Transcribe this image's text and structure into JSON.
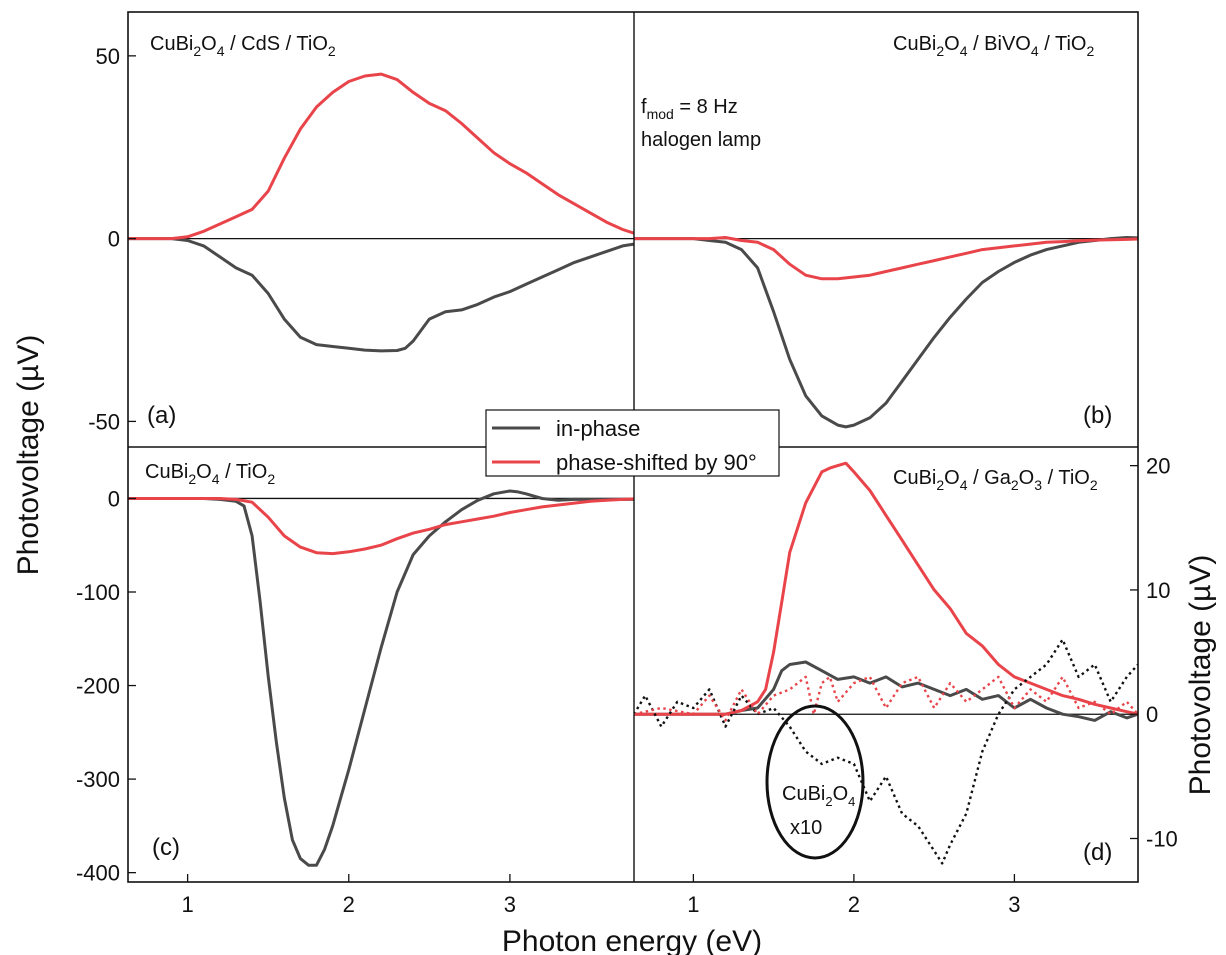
{
  "figure": {
    "ylabel": "Photovoltage (µV)",
    "ylabel_right": "Photovoltage (µV)",
    "xlabel": "Photon energy (eV)",
    "legend": [
      "in-phase",
      "phase-shifted by 90°"
    ],
    "colors": {
      "in_phase": "#4a4a4a",
      "phase_shifted": "#e8444a",
      "frame": "#111111"
    }
  },
  "chart_data": [
    {
      "type": "line",
      "panel": "(a)",
      "title": "CuBi2O4 / CdS / TiO2",
      "xlim": [
        0.63,
        3.77
      ],
      "ylim": [
        -57,
        62
      ],
      "yticks": [
        50,
        0,
        -50
      ],
      "grid": false,
      "series": [
        {
          "name": "in-phase",
          "x": [
            0.63,
            0.9,
            1.0,
            1.1,
            1.2,
            1.3,
            1.4,
            1.5,
            1.6,
            1.7,
            1.8,
            1.9,
            2.0,
            2.1,
            2.2,
            2.3,
            2.35,
            2.4,
            2.5,
            2.6,
            2.7,
            2.8,
            2.9,
            3.0,
            3.1,
            3.2,
            3.3,
            3.4,
            3.5,
            3.6,
            3.7,
            3.77
          ],
          "y": [
            0,
            0,
            -0.5,
            -2,
            -5,
            -8,
            -10,
            -15,
            -22,
            -27,
            -29,
            -29.5,
            -30,
            -30.5,
            -30.7,
            -30.6,
            -30,
            -28,
            -22,
            -20,
            -19.5,
            -18,
            -16,
            -14.5,
            -12.5,
            -10.5,
            -8.5,
            -6.5,
            -5,
            -3.5,
            -2,
            -1.5
          ]
        },
        {
          "name": "phase-shifted by 90°",
          "x": [
            0.63,
            0.9,
            1.0,
            1.1,
            1.2,
            1.3,
            1.4,
            1.5,
            1.6,
            1.7,
            1.8,
            1.9,
            2.0,
            2.1,
            2.2,
            2.3,
            2.4,
            2.5,
            2.6,
            2.7,
            2.8,
            2.9,
            3.0,
            3.1,
            3.2,
            3.3,
            3.4,
            3.5,
            3.6,
            3.7,
            3.77
          ],
          "y": [
            0,
            0,
            0.5,
            2,
            4,
            6,
            8,
            13,
            22,
            30,
            36,
            40,
            43,
            44.5,
            45,
            43.5,
            40,
            37,
            35,
            31.5,
            27.5,
            23.5,
            20.5,
            18,
            15,
            12,
            9.5,
            7,
            4.5,
            2.5,
            1.5
          ]
        }
      ]
    },
    {
      "type": "line",
      "panel": "(b)",
      "title": "CuBi2O4 / BiVO4 / TiO2",
      "annotation_lines": [
        "fmod = 8 Hz",
        "halogen lamp"
      ],
      "xlim": [
        0.63,
        3.77
      ],
      "ylim": [
        -57,
        62
      ],
      "grid": false,
      "series": [
        {
          "name": "in-phase",
          "x": [
            0.63,
            1.0,
            1.1,
            1.2,
            1.3,
            1.4,
            1.5,
            1.6,
            1.7,
            1.8,
            1.9,
            1.95,
            2.0,
            2.1,
            2.2,
            2.3,
            2.4,
            2.5,
            2.6,
            2.7,
            2.8,
            2.9,
            3.0,
            3.1,
            3.2,
            3.3,
            3.4,
            3.5,
            3.6,
            3.7,
            3.77
          ],
          "y": [
            0,
            0,
            -0.5,
            -1,
            -3,
            -8,
            -20,
            -33,
            -43,
            -48.5,
            -51,
            -51.5,
            -51,
            -49,
            -45,
            -39,
            -33,
            -27,
            -21.5,
            -16.5,
            -12,
            -9,
            -6.5,
            -4.5,
            -3,
            -2,
            -1,
            -0.5,
            0,
            0.3,
            0.2
          ]
        },
        {
          "name": "phase-shifted by 90°",
          "x": [
            0.63,
            1.0,
            1.1,
            1.2,
            1.3,
            1.4,
            1.5,
            1.6,
            1.7,
            1.8,
            1.9,
            2.0,
            2.1,
            2.2,
            2.3,
            2.4,
            2.5,
            2.6,
            2.7,
            2.8,
            2.9,
            3.0,
            3.1,
            3.2,
            3.3,
            3.4,
            3.5,
            3.6,
            3.7,
            3.77
          ],
          "y": [
            0,
            0,
            0,
            0.3,
            -0.5,
            -1,
            -3,
            -7,
            -10,
            -11,
            -11,
            -10.5,
            -10,
            -9,
            -8,
            -7,
            -6,
            -5,
            -4,
            -3,
            -2.5,
            -2,
            -1.5,
            -1,
            -0.8,
            -0.6,
            -0.4,
            -0.3,
            -0.2,
            -0.1
          ]
        }
      ]
    },
    {
      "type": "line",
      "panel": "(c)",
      "title": "CuBi2O4 / TiO2",
      "xlim": [
        0.63,
        3.77
      ],
      "ylim": [
        -410,
        55
      ],
      "yticks": [
        0,
        -100,
        -200,
        -300,
        -400
      ],
      "xticks": [
        1,
        2,
        3
      ],
      "grid": false,
      "series": [
        {
          "name": "in-phase",
          "x": [
            0.63,
            1.0,
            1.1,
            1.2,
            1.3,
            1.35,
            1.4,
            1.45,
            1.5,
            1.55,
            1.6,
            1.65,
            1.7,
            1.75,
            1.8,
            1.85,
            1.9,
            1.95,
            2.0,
            2.1,
            2.2,
            2.3,
            2.4,
            2.5,
            2.6,
            2.7,
            2.8,
            2.9,
            3.0,
            3.05,
            3.1,
            3.2,
            3.3,
            3.4,
            3.5,
            3.6,
            3.7,
            3.77
          ],
          "y": [
            0,
            0,
            0,
            -1,
            -3,
            -8,
            -40,
            -110,
            -190,
            -260,
            -320,
            -365,
            -385,
            -392,
            -392,
            -375,
            -350,
            -320,
            -290,
            -225,
            -160,
            -100,
            -60,
            -40,
            -25,
            -12,
            -2,
            5,
            8,
            7,
            5,
            0,
            -2,
            -1,
            -1,
            -1,
            -1,
            -1
          ]
        },
        {
          "name": "phase-shifted by 90°",
          "x": [
            0.63,
            1.0,
            1.1,
            1.2,
            1.3,
            1.4,
            1.5,
            1.6,
            1.7,
            1.8,
            1.9,
            2.0,
            2.1,
            2.2,
            2.3,
            2.4,
            2.5,
            2.6,
            2.7,
            2.8,
            2.9,
            3.0,
            3.1,
            3.2,
            3.3,
            3.4,
            3.5,
            3.6,
            3.7,
            3.77
          ],
          "y": [
            0,
            0,
            0,
            0,
            -1,
            -4,
            -20,
            -40,
            -52,
            -58,
            -59,
            -57,
            -54,
            -50,
            -43,
            -37,
            -33,
            -28,
            -25,
            -22,
            -19,
            -15,
            -12,
            -9,
            -7,
            -5,
            -3,
            -2,
            -1,
            -0.5
          ]
        }
      ]
    },
    {
      "type": "line",
      "panel": "(d)",
      "title": "CuBi2O4 / Ga2O3 / TiO2",
      "inset_label_lines": [
        "CuBi2O4",
        "x10"
      ],
      "xlim": [
        0.63,
        3.77
      ],
      "ylim": [
        -13.5,
        21.5
      ],
      "yticks": [
        20,
        10,
        0,
        -10
      ],
      "xticks": [
        1,
        2,
        3
      ],
      "grid": false,
      "series": [
        {
          "name": "in-phase",
          "x": [
            0.63,
            1.0,
            1.1,
            1.2,
            1.3,
            1.4,
            1.5,
            1.55,
            1.6,
            1.7,
            1.8,
            1.9,
            2.0,
            2.1,
            2.2,
            2.3,
            2.4,
            2.5,
            2.6,
            2.7,
            2.8,
            2.9,
            3.0,
            3.1,
            3.2,
            3.3,
            3.4,
            3.5,
            3.6,
            3.7,
            3.77
          ],
          "y": [
            0,
            0,
            0,
            0,
            0.3,
            0.5,
            2,
            3.5,
            4,
            4.2,
            3.5,
            2.8,
            3,
            2.5,
            3,
            2.2,
            2.5,
            2,
            1.5,
            2,
            1.2,
            1.5,
            0.5,
            1.2,
            0.5,
            0,
            -0.2,
            -0.5,
            0.2,
            -0.3,
            0
          ]
        },
        {
          "name": "phase-shifted by 90°",
          "x": [
            0.63,
            1.0,
            1.2,
            1.3,
            1.4,
            1.45,
            1.5,
            1.55,
            1.6,
            1.7,
            1.8,
            1.85,
            1.9,
            1.95,
            2.0,
            2.1,
            2.2,
            2.3,
            2.4,
            2.5,
            2.6,
            2.7,
            2.8,
            2.9,
            3.0,
            3.1,
            3.2,
            3.3,
            3.4,
            3.5,
            3.6,
            3.7,
            3.77
          ],
          "y": [
            0,
            0,
            0,
            0.3,
            1,
            2,
            5,
            9,
            13,
            17,
            19.5,
            19.8,
            20,
            20.2,
            19.5,
            18,
            16,
            14,
            12,
            10,
            8.5,
            6.5,
            5.5,
            4,
            3,
            2.5,
            2,
            1.5,
            1.2,
            0.8,
            0.5,
            0.2,
            0
          ]
        },
        {
          "name": "CuBi2O4 x10 in-phase",
          "x": [
            0.63,
            0.7,
            0.8,
            0.9,
            1.0,
            1.1,
            1.2,
            1.3,
            1.4,
            1.5,
            1.6,
            1.7,
            1.8,
            1.9,
            2.0,
            2.1,
            2.2,
            2.3,
            2.4,
            2.5,
            2.55,
            2.6,
            2.7,
            2.8,
            2.9,
            3.0,
            3.1,
            3.2,
            3.3,
            3.4,
            3.5,
            3.6,
            3.7,
            3.77
          ],
          "y": [
            0,
            1.5,
            -1,
            1,
            0.5,
            2,
            -1,
            1.5,
            0,
            0.5,
            -1,
            -3,
            -4,
            -3.5,
            -4,
            -7,
            -5,
            -8,
            -9,
            -11,
            -12,
            -10.5,
            -8,
            -3,
            0,
            2,
            3,
            4,
            6,
            3,
            4,
            1,
            3,
            4
          ]
        },
        {
          "name": "CuBi2O4 x10 phase-shifted",
          "x": [
            0.63,
            0.8,
            1.0,
            1.1,
            1.2,
            1.3,
            1.4,
            1.5,
            1.6,
            1.7,
            1.75,
            1.8,
            1.85,
            1.9,
            2.0,
            2.1,
            2.2,
            2.3,
            2.4,
            2.5,
            2.6,
            2.7,
            2.8,
            2.9,
            3.0,
            3.1,
            3.2,
            3.3,
            3.4,
            3.5,
            3.6,
            3.7,
            3.77
          ],
          "y": [
            0,
            0.5,
            0,
            1.5,
            -0.5,
            2,
            0,
            1.5,
            2,
            3,
            0,
            2.5,
            3,
            1,
            2.5,
            3,
            0.5,
            2.5,
            3,
            0.5,
            2.5,
            1,
            2,
            3,
            0.5,
            2,
            1,
            3,
            0.5,
            1,
            0,
            1,
            0
          ]
        }
      ]
    }
  ]
}
